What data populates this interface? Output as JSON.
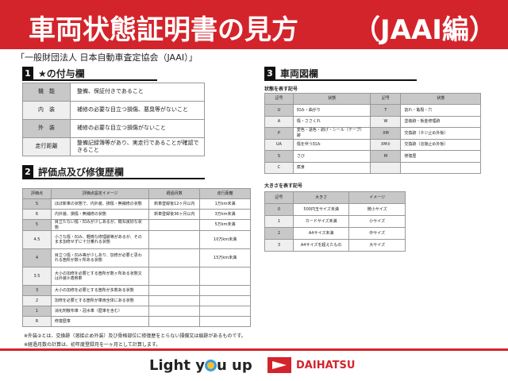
{
  "header": {
    "title": "車両状態証明書の見方",
    "title_suffix": "（JAAI編）"
  },
  "subtitle": "「一般財団法人 日本自動車査定協会（JAAI）」",
  "section1": {
    "num": "1",
    "title": "★の付与欄",
    "rows": [
      [
        "機　能",
        "整備、保証付きであること"
      ],
      [
        "内　装",
        "補修の必要な目立つ損傷、悪臭等がないこと"
      ],
      [
        "外　装",
        "補修の必要な目立つ損傷がないこと"
      ],
      [
        "走行距離",
        "整備記録簿等があり、実走行であることが確認できること"
      ]
    ]
  },
  "section2": {
    "num": "2",
    "title": "評価点及び修復歴欄",
    "headers": [
      "評価点",
      "評価点設定イメージ",
      "経過月数",
      "走行距離"
    ],
    "rows": [
      [
        "S",
        "ほぼ新車の状態で、内外装、損傷・無補修の状態",
        "新車登録後12ヶ月以内",
        "1万km未満"
      ],
      [
        "6",
        "内外装、損傷・無補修の状態",
        "新車登録後36ヶ月以内",
        "3万km未満"
      ],
      [
        "5",
        "目立たない傷・凹みが少しあるが、概ね良好な状態",
        "",
        "5万km未満"
      ],
      [
        "4.5",
        "小さな傷・凹み、軽微な修理跡等があるが、そのまま加修せずに十分乗れる状態",
        "",
        "10万km未満"
      ],
      [
        "4",
        "目立つ傷・凹み等が少しあり、加修が必要と思われる箇所が数ヶ所ある状態",
        "",
        "15万km未満"
      ],
      [
        "3.5",
        "大小の加修を必要とする箇所が数ヶ所ある状態又は外装②適用車",
        "",
        ""
      ],
      [
        "3",
        "大小の加修を必要とする箇所が多数ある状態",
        "",
        ""
      ],
      [
        "2",
        "加修を必要とする箇所が車両全体にある状態",
        "",
        ""
      ],
      [
        "1",
        "消化剤散布車・冠水車（歴車を含む）",
        "",
        ""
      ],
      [
        "R",
        "修復歴車",
        "",
        ""
      ]
    ]
  },
  "section3": {
    "num": "3",
    "title": "車両図欄",
    "state_caption": "状態を表す記号",
    "state_headers": [
      "記号",
      "状態",
      "記号",
      "状態"
    ],
    "state_rows": [
      [
        "U",
        "凹み・曲がり",
        "T",
        "割れ・亀裂・穴"
      ],
      [
        "A",
        "傷・ささくれ",
        "W",
        "塗装跡・板金修理跡"
      ],
      [
        "P",
        "変色・退色・剥げ・シール（テープ）跡",
        "XM",
        "交換跡（ネジ止め外板）"
      ],
      [
        "UA",
        "傷を伴う凹み",
        "XM②",
        "交換跡（溶接止め外板）"
      ],
      [
        "S",
        "さび",
        "M",
        "修復歴"
      ],
      [
        "C",
        "腐食",
        "",
        ""
      ]
    ],
    "size_caption": "大きさを表す記号",
    "size_headers": [
      "記号",
      "大きさ",
      "イメージ"
    ],
    "size_rows": [
      [
        "0",
        "500円玉サイズ未満",
        "微小サイズ"
      ],
      [
        "1",
        "カードサイズ未満",
        "小サイズ"
      ],
      [
        "2",
        "A4サイズ未満",
        "中サイズ"
      ],
      [
        "3",
        "A4サイズを超えたもの",
        "大サイズ"
      ]
    ]
  },
  "notes": [
    "※外装②とは、交換跡（溶接止め外装）及び骨格部位に修復歴をとらない損傷又は痕跡があるものです。",
    "※経過月数の計算は、初年度登録月を一ヶ月として計算します。"
  ],
  "footer": {
    "slogan_a": "Light y",
    "slogan_b": "u up",
    "brand": "DAIHATSU",
    "brand_color": "#d4242b"
  }
}
